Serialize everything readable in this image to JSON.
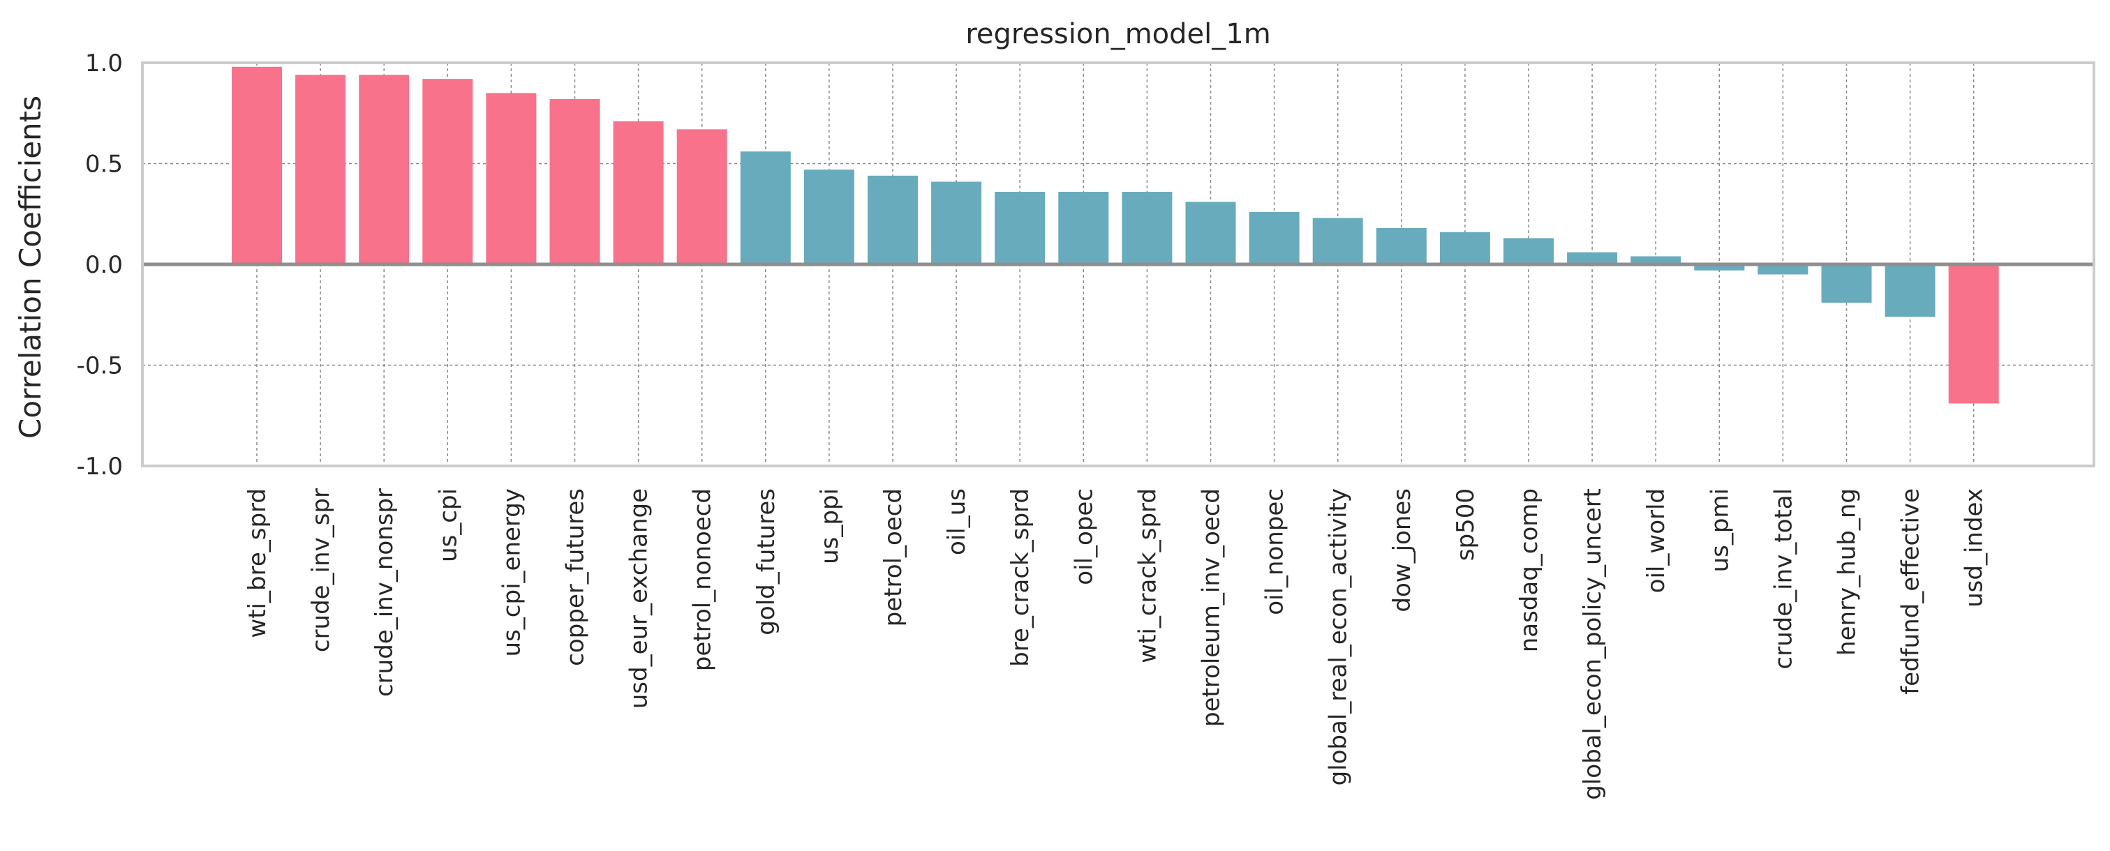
{
  "chart_data": {
    "type": "bar",
    "title": "regression_model_1m",
    "xlabel": "",
    "ylabel": "Correlation Coefficients",
    "ylim": [
      -1.0,
      1.0
    ],
    "yticks": [
      "-1.0",
      "-0.5",
      "0.0",
      "0.5",
      "1.0"
    ],
    "grid": true,
    "categories": [
      "wti_bre_sprd",
      "crude_inv_spr",
      "crude_inv_nonspr",
      "us_cpi",
      "us_cpi_energy",
      "copper_futures",
      "usd_eur_exchange",
      "petrol_nonoecd",
      "gold_futures",
      "us_ppi",
      "petrol_oecd",
      "oil_us",
      "bre_crack_sprd",
      "oil_opec",
      "wti_crack_sprd",
      "petroleum_inv_oecd",
      "oil_nonpec",
      "global_real_econ_activity",
      "dow_jones",
      "sp500",
      "nasdaq_comp",
      "global_econ_policy_uncert",
      "oil_world",
      "us_pmi",
      "crude_inv_total",
      "henry_hub_ng",
      "fedfund_effective",
      "usd_index"
    ],
    "values": [
      0.98,
      0.94,
      0.94,
      0.92,
      0.85,
      0.82,
      0.71,
      0.67,
      0.56,
      0.47,
      0.44,
      0.41,
      0.36,
      0.36,
      0.36,
      0.31,
      0.26,
      0.23,
      0.18,
      0.16,
      0.13,
      0.06,
      0.04,
      -0.03,
      -0.05,
      -0.19,
      -0.26,
      -0.69
    ],
    "highlight": [
      true,
      true,
      true,
      true,
      true,
      true,
      true,
      true,
      false,
      false,
      false,
      false,
      false,
      false,
      false,
      false,
      false,
      false,
      false,
      false,
      false,
      false,
      false,
      false,
      false,
      false,
      false,
      true
    ],
    "colors": {
      "highlight": "#f7728a",
      "normal": "#67abbc",
      "grid": "#8a8a8a",
      "zero": "#8f8f8f",
      "frame": "#cccccc"
    }
  }
}
